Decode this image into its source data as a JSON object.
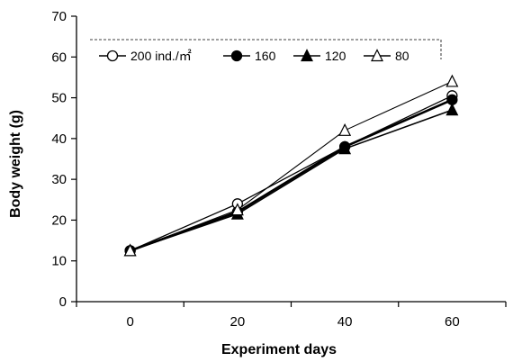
{
  "chart_data": {
    "type": "line",
    "xlabel": "Experiment days",
    "ylabel": "Body weight (g)",
    "x": [
      0,
      20,
      40,
      60
    ],
    "x_ticks": [
      "0",
      "20",
      "40",
      "60"
    ],
    "y_ticks": [
      "0",
      "10",
      "20",
      "30",
      "40",
      "50",
      "60",
      "70"
    ],
    "ylim": [
      0,
      70
    ],
    "grid": false,
    "legend_position": "top",
    "series": [
      {
        "name": "200 ind./㎡",
        "marker": "open-circle",
        "values": [
          12.5,
          24,
          38,
          50.5
        ]
      },
      {
        "name": "160",
        "marker": "filled-circle",
        "values": [
          12.5,
          22,
          38,
          49.5
        ]
      },
      {
        "name": "120",
        "marker": "filled-triangle",
        "values": [
          12.5,
          21.5,
          37.5,
          47
        ]
      },
      {
        "name": "80",
        "marker": "open-triangle",
        "values": [
          12.5,
          22.5,
          42,
          54
        ]
      }
    ]
  }
}
